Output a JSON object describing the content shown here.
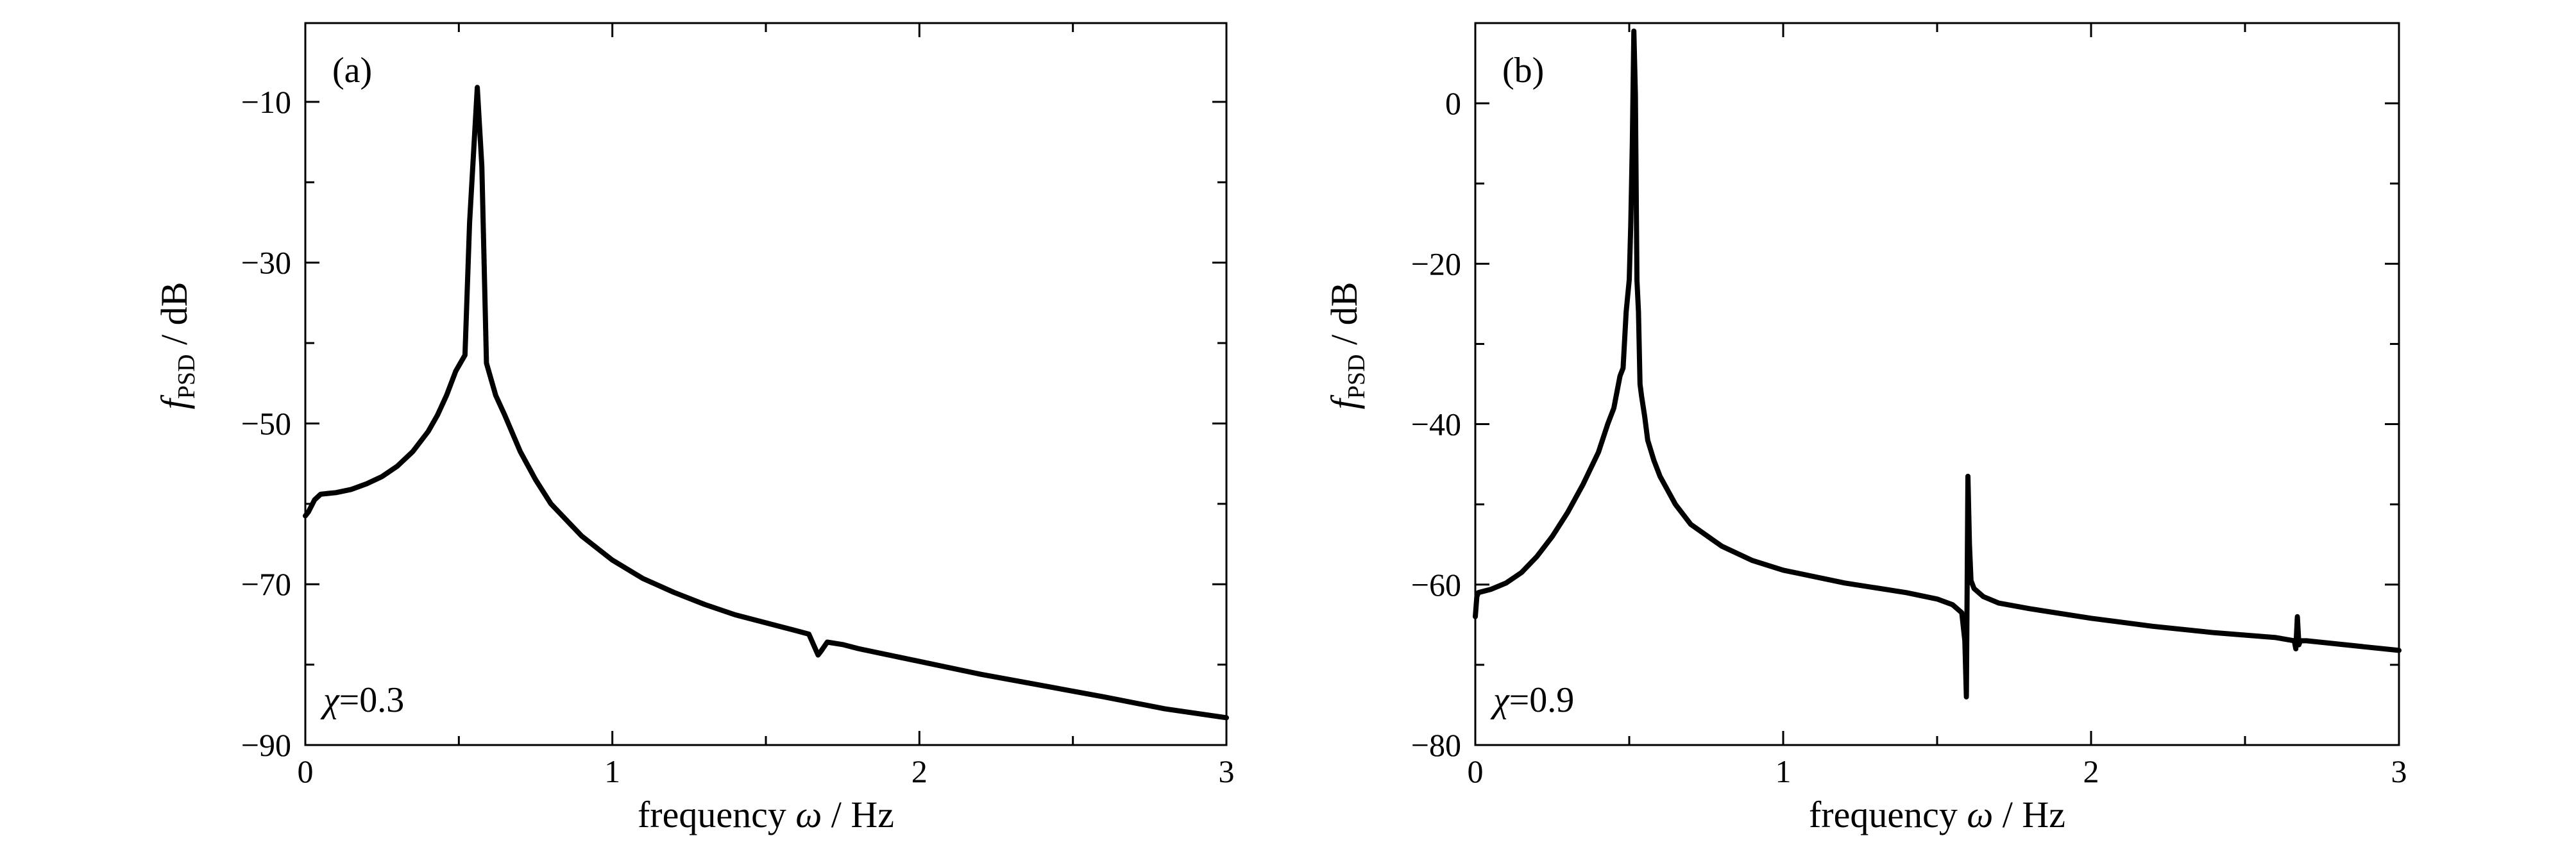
{
  "chart_data": [
    {
      "type": "line",
      "panel_label": "(a)",
      "annotation": {
        "symbol": "χ",
        "text": "=0.3"
      },
      "xlabel": {
        "prefix": "frequency ",
        "symbol": "ω",
        "suffix": " / Hz"
      },
      "ylabel": {
        "symbol": "f",
        "subscript": "PSD",
        "suffix": " / dB"
      },
      "xlim": [
        0,
        3
      ],
      "ylim": [
        -90,
        -0.2
      ],
      "xticks": [
        0,
        1,
        2,
        3
      ],
      "xtick_labels": [
        "0",
        "1",
        "2",
        "3"
      ],
      "yticks": [
        -90,
        -70,
        -50,
        -30,
        -10
      ],
      "ytick_labels": [
        "−90",
        "−70",
        "−50",
        "−30",
        "−10"
      ],
      "yticks_minor": [
        -80,
        -60,
        -40,
        -20
      ],
      "xticks_minor": [
        0.5,
        1.5,
        2.5
      ],
      "series": [
        {
          "x": [
            0.0,
            0.01,
            0.03,
            0.05,
            0.1,
            0.15,
            0.2,
            0.25,
            0.3,
            0.35,
            0.4,
            0.43,
            0.46,
            0.49,
            0.52,
            0.535,
            0.56,
            0.575,
            0.59,
            0.62,
            0.65,
            0.7,
            0.75,
            0.8,
            0.9,
            1.0,
            1.1,
            1.2,
            1.3,
            1.4,
            1.5,
            1.6,
            1.64,
            1.67,
            1.68,
            1.7,
            1.75,
            1.8,
            1.9,
            2.0,
            2.2,
            2.4,
            2.6,
            2.8,
            3.0
          ],
          "y": [
            -61.5,
            -61.0,
            -59.5,
            -58.8,
            -58.6,
            -58.2,
            -57.5,
            -56.6,
            -55.3,
            -53.5,
            -51.0,
            -49.0,
            -46.5,
            -43.5,
            -41.5,
            -25.0,
            -8.2,
            -18.0,
            -42.5,
            -46.5,
            -49.0,
            -53.5,
            -57.0,
            -60.0,
            -64.0,
            -67.0,
            -69.3,
            -71.0,
            -72.5,
            -73.8,
            -74.8,
            -75.8,
            -76.2,
            -78.8,
            -78.3,
            -77.2,
            -77.5,
            -78.0,
            -78.8,
            -79.6,
            -81.2,
            -82.6,
            -84.0,
            -85.5,
            -86.6
          ]
        }
      ]
    },
    {
      "type": "line",
      "panel_label": "(b)",
      "annotation": {
        "symbol": "χ",
        "text": "=0.9"
      },
      "xlabel": {
        "prefix": "frequency ",
        "symbol": "ω",
        "suffix": " / Hz"
      },
      "ylabel": {
        "symbol": "f",
        "subscript": "PSD",
        "suffix": " / dB"
      },
      "xlim": [
        0,
        3
      ],
      "ylim": [
        -80,
        10
      ],
      "xticks": [
        0,
        1,
        2,
        3
      ],
      "xtick_labels": [
        "0",
        "1",
        "2",
        "3"
      ],
      "yticks": [
        -80,
        -60,
        -40,
        -20,
        0
      ],
      "ytick_labels": [
        "−80",
        "−60",
        "−40",
        "−20",
        "0"
      ],
      "yticks_minor": [
        -70,
        -50,
        -30,
        -10
      ],
      "xticks_minor": [
        0.5,
        1.5,
        2.5
      ],
      "series": [
        {
          "x": [
            0.0,
            0.005,
            0.01,
            0.05,
            0.1,
            0.15,
            0.2,
            0.25,
            0.3,
            0.35,
            0.4,
            0.43,
            0.45,
            0.47,
            0.48,
            0.49,
            0.5,
            0.505,
            0.51,
            0.515,
            0.52,
            0.525,
            0.53,
            0.535,
            0.54,
            0.55,
            0.56,
            0.58,
            0.6,
            0.65,
            0.7,
            0.8,
            0.9,
            1.0,
            1.2,
            1.4,
            1.5,
            1.55,
            1.58,
            1.59,
            1.595,
            1.6,
            1.605,
            1.61,
            1.62,
            1.65,
            1.7,
            1.8,
            2.0,
            2.2,
            2.4,
            2.6,
            2.66,
            2.665,
            2.67,
            2.675,
            2.68,
            2.7,
            2.8,
            3.0
          ],
          "y": [
            -64.0,
            -61.5,
            -61.0,
            -60.6,
            -59.8,
            -58.5,
            -56.5,
            -54.0,
            -51.0,
            -47.5,
            -43.5,
            -40.0,
            -38.0,
            -34.0,
            -33.0,
            -26.0,
            -22.0,
            -15.0,
            -5.0,
            9.0,
            1.0,
            -22.0,
            -26.0,
            -35.0,
            -36.5,
            -39.0,
            -42.0,
            -44.5,
            -46.5,
            -50.0,
            -52.5,
            -55.2,
            -57.0,
            -58.2,
            -59.8,
            -61.0,
            -61.8,
            -62.5,
            -63.5,
            -67.0,
            -74.0,
            -46.5,
            -55.0,
            -59.5,
            -60.5,
            -61.5,
            -62.3,
            -63.0,
            -64.2,
            -65.2,
            -66.0,
            -66.6,
            -67.0,
            -68.0,
            -64.0,
            -67.5,
            -67.0,
            -67.0,
            -67.4,
            -68.2
          ]
        }
      ]
    }
  ]
}
